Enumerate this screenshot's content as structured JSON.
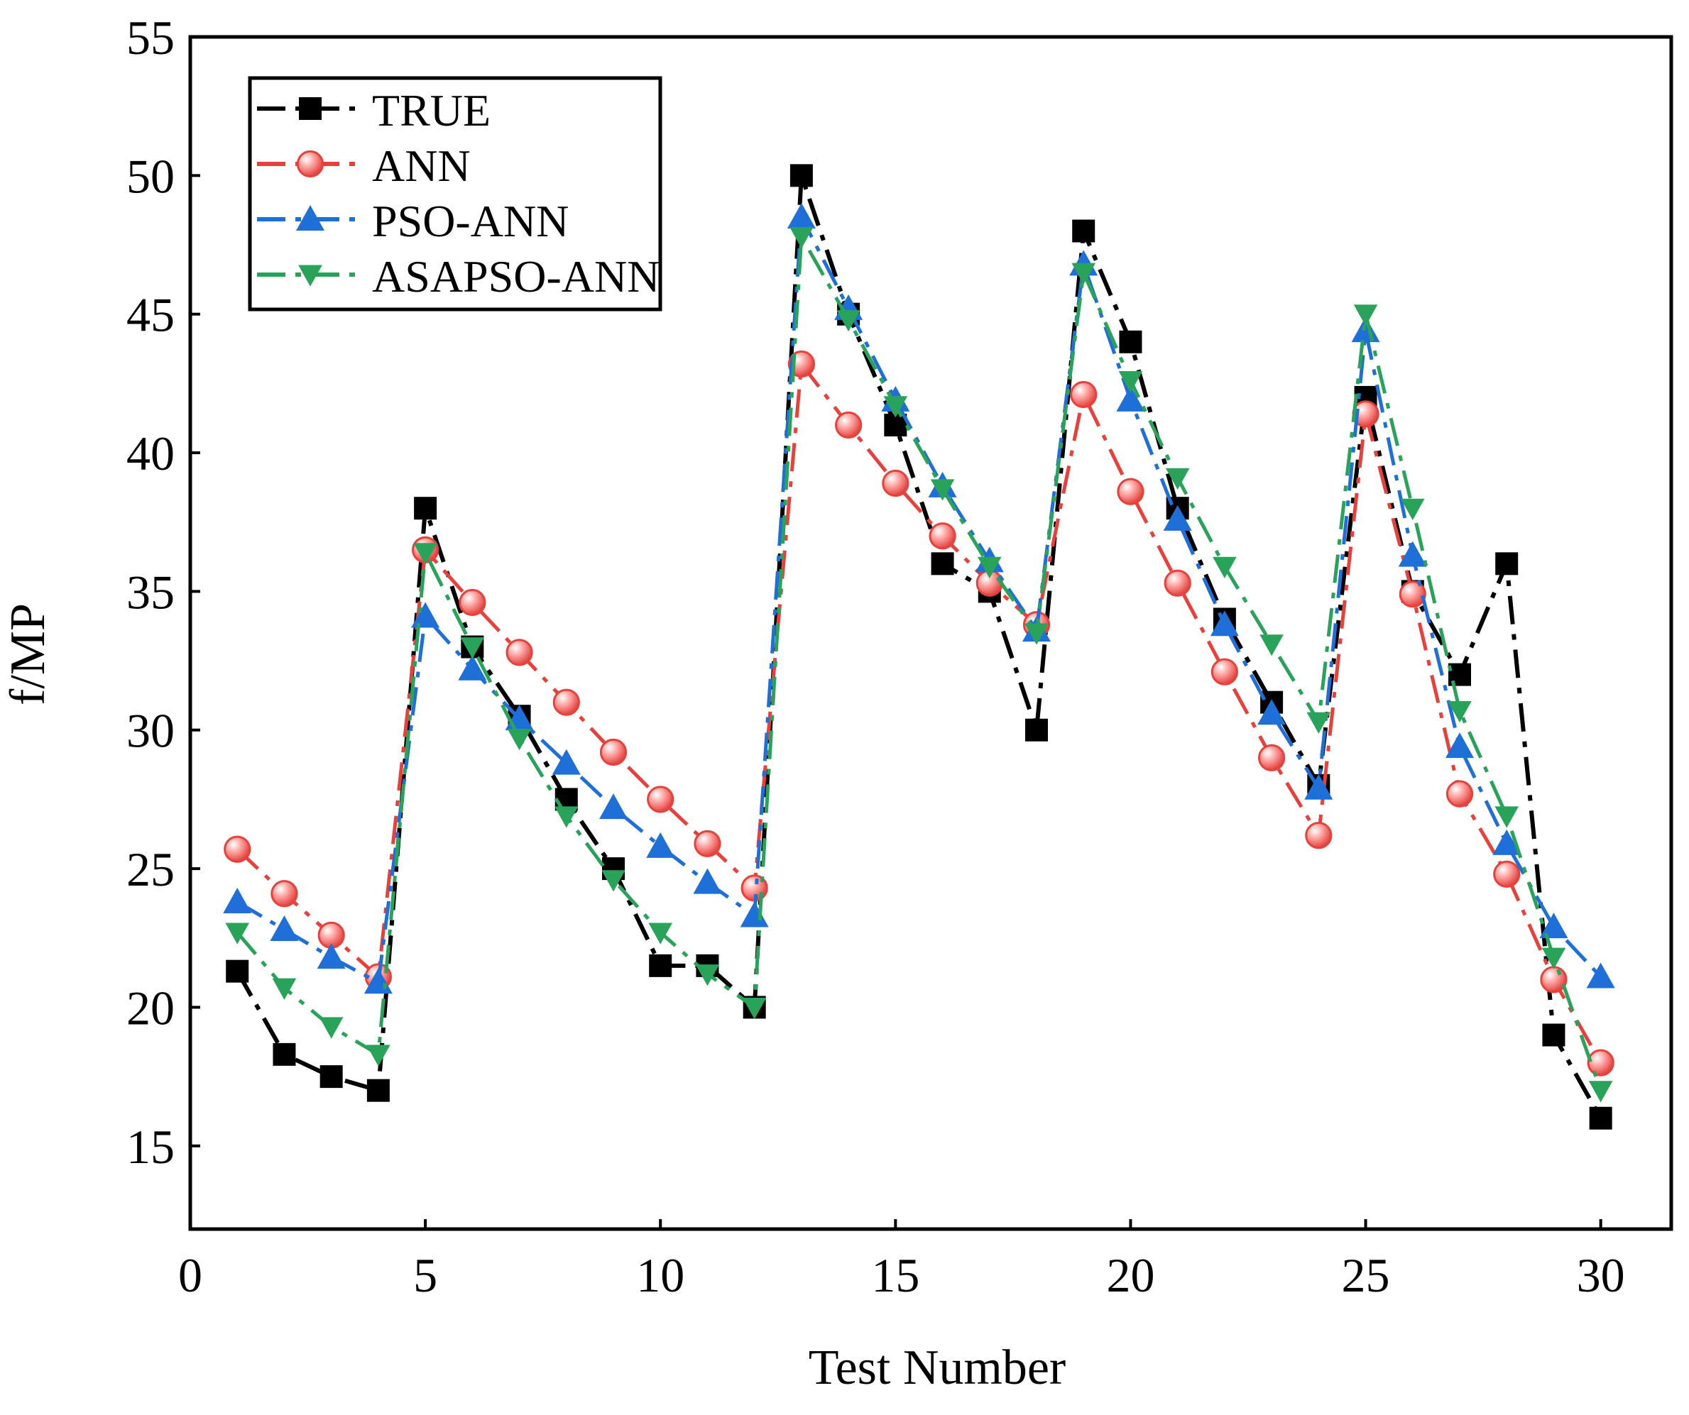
{
  "chart_data": {
    "type": "line",
    "title": "",
    "xlabel": "Test Number",
    "ylabel": "f/MP",
    "xlim": [
      0,
      31.5
    ],
    "ylim": [
      12,
      55
    ],
    "xticks": [
      0,
      5,
      10,
      15,
      20,
      25,
      30
    ],
    "yticks": [
      15,
      20,
      25,
      30,
      35,
      40,
      45,
      50,
      55
    ],
    "grid": false,
    "legend_position": "top-left",
    "x": [
      1,
      2,
      3,
      4,
      5,
      6,
      7,
      8,
      9,
      10,
      11,
      12,
      13,
      14,
      15,
      16,
      17,
      18,
      19,
      20,
      21,
      22,
      23,
      24,
      25,
      26,
      27,
      28,
      29,
      30
    ],
    "series": [
      {
        "name": "TRUE",
        "color": "#000000",
        "marker": "square",
        "dash": "dashdot",
        "values": [
          21.3,
          18.3,
          17.5,
          17,
          38,
          33,
          30.5,
          27.5,
          25,
          21.5,
          21.5,
          20,
          50,
          45,
          41,
          36,
          35,
          30,
          48,
          44,
          38,
          34,
          31,
          28,
          42,
          35,
          32,
          36,
          19,
          16
        ]
      },
      {
        "name": "ANN",
        "color": "#e8413c",
        "marker": "circle",
        "dash": "dashdot",
        "values": [
          25.7,
          24.1,
          22.6,
          21.1,
          36.5,
          34.6,
          32.8,
          31,
          29.2,
          27.5,
          25.9,
          24.3,
          43.2,
          41,
          38.9,
          37,
          35.3,
          33.8,
          42.1,
          38.6,
          35.3,
          32.1,
          29,
          26.2,
          41.4,
          34.9,
          27.7,
          24.8,
          21,
          18
        ]
      },
      {
        "name": "PSO-ANN",
        "color": "#1f6fd8",
        "marker": "triangle-up",
        "dash": "dashdot",
        "values": [
          23.8,
          22.8,
          21.8,
          20.9,
          34.1,
          32.2,
          30.4,
          28.8,
          27.2,
          25.8,
          24.5,
          23.3,
          48.5,
          45.2,
          41.9,
          38.8,
          36.1,
          33.6,
          46.8,
          41.9,
          37.6,
          33.8,
          30.6,
          27.9,
          44.4,
          36.3,
          29.4,
          25.9,
          22.9,
          21.1
        ]
      },
      {
        "name": "ASAPSO-ANN",
        "color": "#2aa35a",
        "marker": "triangle-down",
        "dash": "dashdot",
        "values": [
          22.7,
          20.7,
          19.3,
          18.3,
          36.4,
          33,
          29.7,
          26.9,
          24.6,
          22.7,
          21.2,
          20,
          47.8,
          44.8,
          41.7,
          38.7,
          35.9,
          33.5,
          46.5,
          42.6,
          39.1,
          35.9,
          33.1,
          30.3,
          45,
          38,
          30.7,
          26.9,
          21.8,
          17
        ]
      }
    ]
  }
}
